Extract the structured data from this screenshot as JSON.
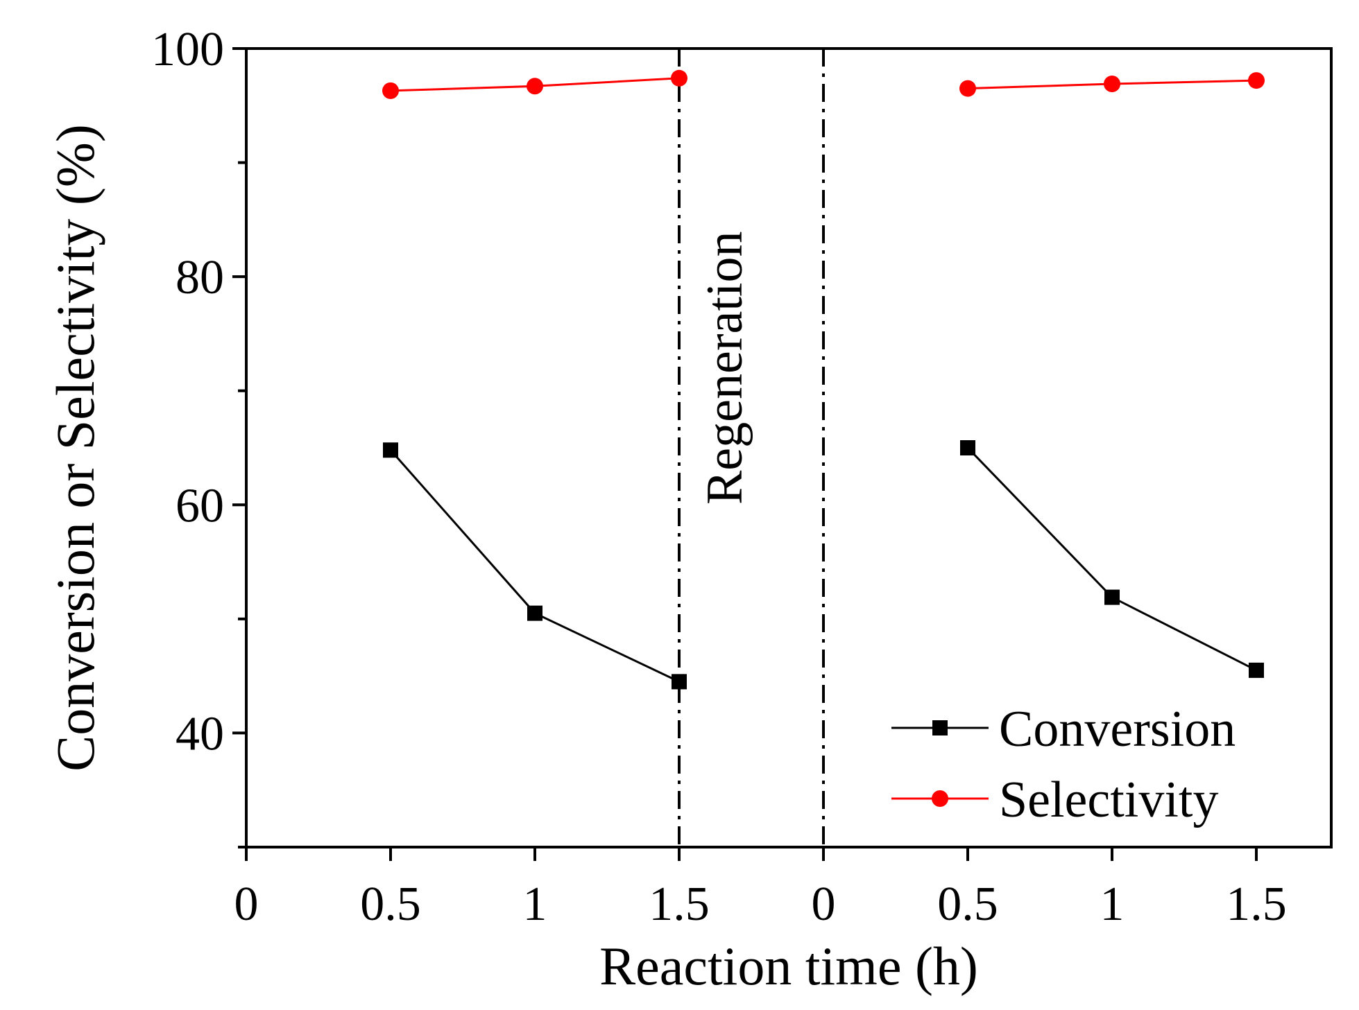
{
  "chart_data": {
    "type": "line",
    "title": "",
    "xlabel": "Reaction time (h)",
    "ylabel": "Conversion or Selectivity (%)",
    "ylim": [
      30,
      100
    ],
    "yticks": [
      40,
      60,
      80,
      100
    ],
    "x_positions": [
      0,
      1,
      2,
      3,
      4,
      5,
      6,
      7
    ],
    "x_tick_labels": [
      "0",
      "0.5",
      "1",
      "1.5",
      "0",
      "0.5",
      "1",
      "1.5"
    ],
    "xlim": [
      0,
      7.5
    ],
    "series": [
      {
        "name": "Conversion",
        "color": "#000000",
        "marker": "square",
        "segments": [
          {
            "x": [
              1,
              2,
              3
            ],
            "values": [
              64.8,
              50.5,
              44.5
            ]
          },
          {
            "x": [
              5,
              6,
              7
            ],
            "values": [
              65.0,
              51.9,
              45.5
            ]
          }
        ]
      },
      {
        "name": "Selectivity",
        "color": "#ff0000",
        "marker": "circle",
        "segments": [
          {
            "x": [
              1,
              2,
              3
            ],
            "values": [
              96.3,
              96.7,
              97.4
            ]
          },
          {
            "x": [
              5,
              6,
              7
            ],
            "values": [
              96.5,
              96.9,
              97.2
            ]
          }
        ]
      }
    ],
    "vertical_lines": [
      3,
      4
    ],
    "annotation": {
      "text": "Regeneration",
      "x": 3.5,
      "y": 72
    },
    "legend_position": "bottom-right"
  }
}
